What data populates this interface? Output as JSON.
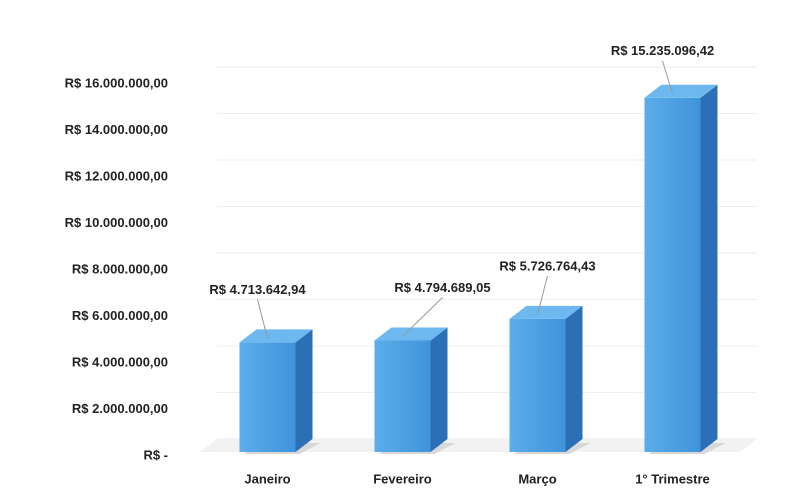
{
  "chart_data": {
    "type": "bar3d",
    "categories": [
      "Janeiro",
      "Fevereiro",
      "Março",
      "1° Trimestre"
    ],
    "values": [
      4713642.94,
      4794689.05,
      5726764.43,
      15235096.42
    ],
    "value_labels": [
      "R$ 4.713.642,94",
      "R$ 4.794.689,05",
      "R$ 5.726.764,43",
      "R$ 15.235.096,42"
    ],
    "color": "#4a9de0",
    "ylim": [
      0,
      16000000
    ],
    "yticks": [
      {
        "value": 0,
        "label": "R$ -"
      },
      {
        "value": 2000000,
        "label": "R$ 2.000.000,00"
      },
      {
        "value": 4000000,
        "label": "R$ 4.000.000,00"
      },
      {
        "value": 6000000,
        "label": "R$ 6.000.000,00"
      },
      {
        "value": 8000000,
        "label": "R$ 8.000.000,00"
      },
      {
        "value": 10000000,
        "label": "R$ 10.000.000,00"
      },
      {
        "value": 12000000,
        "label": "R$ 12.000.000,00"
      },
      {
        "value": 14000000,
        "label": "R$ 14.000.000,00"
      },
      {
        "value": 16000000,
        "label": "R$ 16.000.000,00"
      }
    ],
    "grid": true
  }
}
